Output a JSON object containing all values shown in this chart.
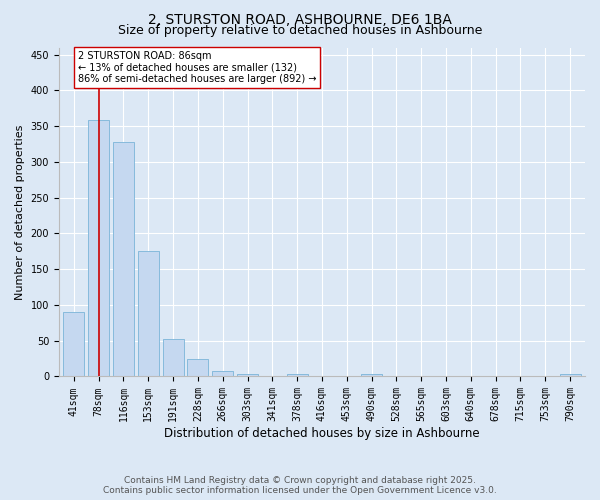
{
  "title1": "2, STURSTON ROAD, ASHBOURNE, DE6 1BA",
  "title2": "Size of property relative to detached houses in Ashbourne",
  "xlabel": "Distribution of detached houses by size in Ashbourne",
  "ylabel": "Number of detached properties",
  "categories": [
    "41sqm",
    "78sqm",
    "116sqm",
    "153sqm",
    "191sqm",
    "228sqm",
    "266sqm",
    "303sqm",
    "341sqm",
    "378sqm",
    "416sqm",
    "453sqm",
    "490sqm",
    "528sqm",
    "565sqm",
    "603sqm",
    "640sqm",
    "678sqm",
    "715sqm",
    "753sqm",
    "790sqm"
  ],
  "values": [
    90,
    358,
    328,
    175,
    52,
    25,
    8,
    4,
    0,
    3,
    0,
    0,
    3,
    0,
    0,
    0,
    0,
    0,
    0,
    0,
    3
  ],
  "bar_color": "#c5d8f0",
  "bar_edge_color": "#7ab4d8",
  "marker_bar_index": 1,
  "marker_line_color": "#cc0000",
  "annotation_text": "2 STURSTON ROAD: 86sqm\n← 13% of detached houses are smaller (132)\n86% of semi-detached houses are larger (892) →",
  "annotation_box_color": "#ffffff",
  "annotation_box_edge": "#cc0000",
  "ylim": [
    0,
    460
  ],
  "yticks": [
    0,
    50,
    100,
    150,
    200,
    250,
    300,
    350,
    400,
    450
  ],
  "background_color": "#dce8f5",
  "grid_color": "#ffffff",
  "footer_line1": "Contains HM Land Registry data © Crown copyright and database right 2025.",
  "footer_line2": "Contains public sector information licensed under the Open Government Licence v3.0.",
  "title1_fontsize": 10,
  "title2_fontsize": 9,
  "xlabel_fontsize": 8.5,
  "ylabel_fontsize": 8,
  "tick_fontsize": 7,
  "annotation_fontsize": 7,
  "footer_fontsize": 6.5
}
